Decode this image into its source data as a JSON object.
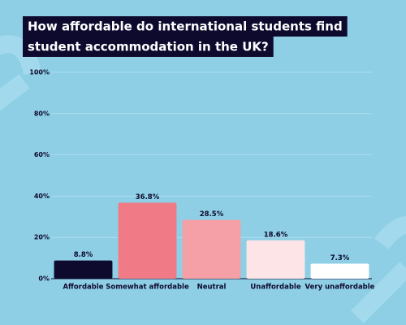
{
  "chart_data": {
    "type": "bar",
    "title": [
      "How affordable do international students find",
      "student accommodation in the UK?"
    ],
    "categories": [
      "Affordable",
      "Somewhat affordable",
      "Neutral",
      "Unaffordable",
      "Very unaffordable"
    ],
    "values": [
      8.8,
      36.8,
      28.5,
      18.6,
      7.3
    ],
    "value_labels": [
      "8.8%",
      "36.8%",
      "28.5%",
      "18.6%",
      "7.3%"
    ],
    "colors": [
      "#0e0a2e",
      "#f07b87",
      "#f4a0a6",
      "#fde4e6",
      "#ffffff"
    ],
    "ylim": [
      0,
      100
    ],
    "yticks": [
      {
        "value": 0,
        "label": "0%"
      },
      {
        "value": 20,
        "label": "20%"
      },
      {
        "value": 40,
        "label": "40%"
      },
      {
        "value": 60,
        "label": "60%"
      },
      {
        "value": 80,
        "label": "80%"
      },
      {
        "value": 100,
        "label": "100%"
      }
    ],
    "grid": true
  }
}
